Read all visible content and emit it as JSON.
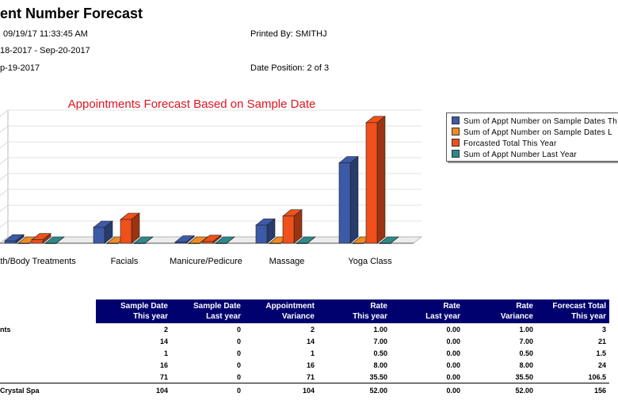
{
  "report": {
    "title": "ent Number Forecast",
    "run_date": "09/19/17 11:33:45 AM",
    "printed_by": "Printed By: SMITHJ",
    "date_range": "18-2017 - Sep-20-2017",
    "sample_date": "p-19-2017",
    "date_position": "Date Position: 2 of 3"
  },
  "chart_data": {
    "type": "bar",
    "title": "Appointments Forecast Based on Sample Date",
    "categories": [
      "ath/Body Treatments",
      "Facials",
      "Manicure/Pedicure",
      "Massage",
      "Yoga Class"
    ],
    "series": [
      {
        "name": "Sum of Appt Number on Sample Dates Th",
        "color": "#3d5aa8",
        "values": [
          2,
          14,
          1,
          16,
          71
        ]
      },
      {
        "name": "Sum of Appt Number on Sample Dates L",
        "color": "#f08a24",
        "values": [
          0,
          0,
          0,
          0,
          0
        ]
      },
      {
        "name": "Forcasted Total This Year",
        "color": "#f0501a",
        "values": [
          3,
          21,
          1.5,
          24,
          106.5
        ]
      },
      {
        "name": "Sum of Appt Number Last Year",
        "color": "#2e8a8a",
        "values": [
          0,
          0,
          0,
          0,
          0
        ]
      }
    ],
    "ylim": [
      0,
      112
    ],
    "grid": true,
    "legend": "right"
  },
  "table": {
    "headers": [
      [
        "Sample Date",
        "This year"
      ],
      [
        "Sample Date",
        "Last year"
      ],
      [
        "Appointment",
        "Variance"
      ],
      [
        "Rate",
        "This year"
      ],
      [
        "Rate",
        "Last year"
      ],
      [
        "Rate",
        "Variance"
      ],
      [
        "Forecast Total",
        "This year"
      ]
    ],
    "rows": [
      {
        "label": "nts",
        "cells": [
          "2",
          "0",
          "2",
          "1.00",
          "0.00",
          "1.00",
          "3"
        ]
      },
      {
        "label": "",
        "cells": [
          "14",
          "0",
          "14",
          "7.00",
          "0.00",
          "7.00",
          "21"
        ]
      },
      {
        "label": "",
        "cells": [
          "1",
          "0",
          "1",
          "0.50",
          "0.00",
          "0.50",
          "1.5"
        ]
      },
      {
        "label": "",
        "cells": [
          "16",
          "0",
          "16",
          "8.00",
          "0.00",
          "8.00",
          "24"
        ]
      },
      {
        "label": "",
        "cells": [
          "71",
          "0",
          "71",
          "35.50",
          "0.00",
          "35.50",
          "106.5"
        ]
      }
    ],
    "total": {
      "label": "Crystal Spa",
      "cells": [
        "104",
        "0",
        "104",
        "52.00",
        "0.00",
        "52.00",
        "156"
      ]
    }
  }
}
